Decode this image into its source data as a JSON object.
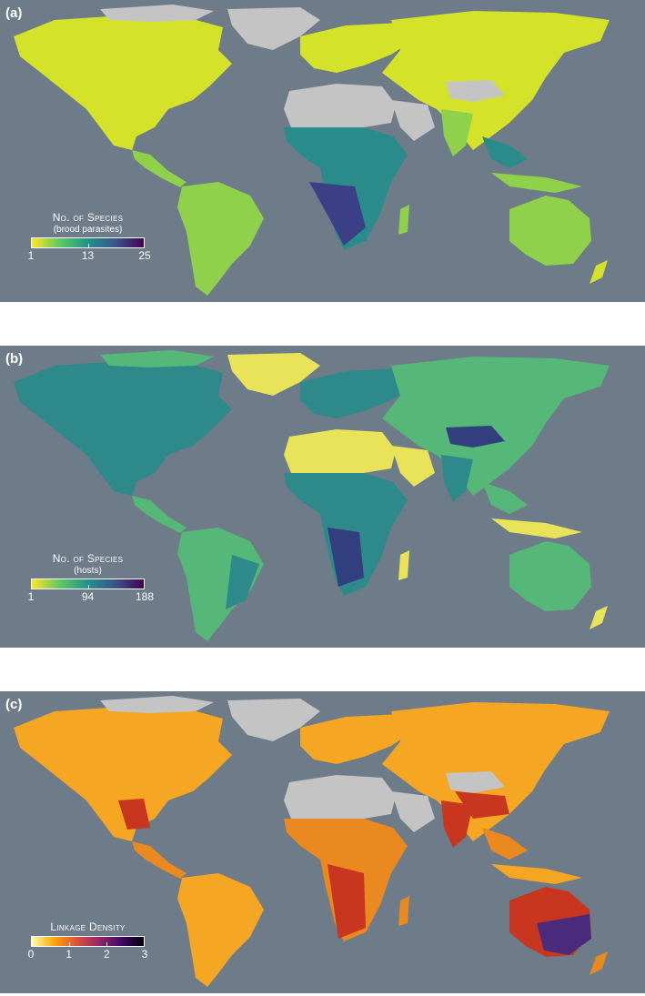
{
  "panels": [
    {
      "label": "(a)",
      "legend": {
        "title": "No. of Species",
        "subtitle": "(brood parasites)",
        "ticks": [
          "1",
          "13",
          "25"
        ],
        "colors": [
          "#fde725",
          "#5ec962",
          "#21918c",
          "#3b528b",
          "#440154"
        ]
      },
      "palette": {
        "low": "#d4e22a",
        "mid": "#8fd14a",
        "high": "#2a8c8a",
        "max": "#3b3f86",
        "nodata": "#c4c4c4"
      }
    },
    {
      "label": "(b)",
      "legend": {
        "title": "No. of Species",
        "subtitle": "(hosts)",
        "ticks": [
          "1",
          "94",
          "188"
        ],
        "colors": [
          "#fde725",
          "#5ec962",
          "#21918c",
          "#3b528b",
          "#440154"
        ]
      },
      "palette": {
        "low": "#e9e35a",
        "mid": "#55b878",
        "high": "#2e8a8a",
        "max": "#323f7f",
        "nodata": "#c4c4c4"
      }
    },
    {
      "label": "(c)",
      "legend": {
        "title": "Linkage Density",
        "subtitle": "",
        "ticks": [
          "0",
          "1",
          "2",
          "3"
        ],
        "colors": [
          "#fcffa4",
          "#fca50a",
          "#dd513a",
          "#932667",
          "#420a68",
          "#000004"
        ]
      },
      "palette": {
        "low": "#f5a623",
        "mid": "#e9891f",
        "high": "#c9361f",
        "max": "#4a2a7a",
        "nodata": "#c4c4c4"
      }
    }
  ]
}
